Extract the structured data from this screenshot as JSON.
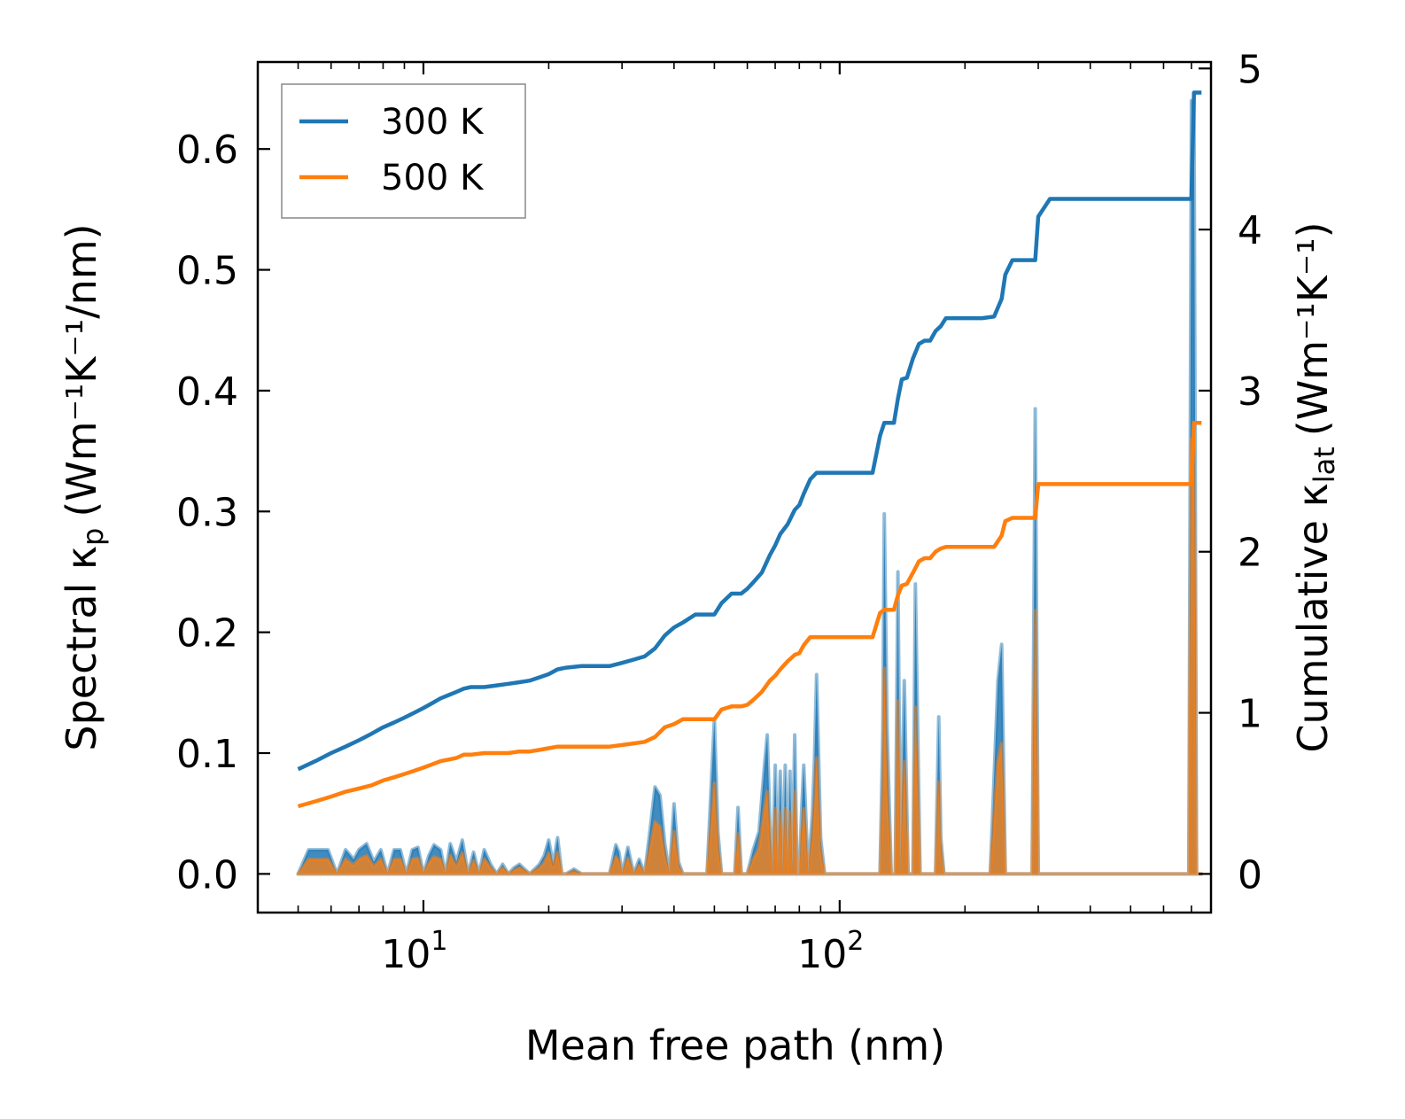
{
  "chart_data": {
    "type": "line",
    "xscale": "log",
    "xlabel": "Mean free path (nm)",
    "ylabel_left_prefix": "Spectral κ",
    "ylabel_left_sub": "p",
    "ylabel_left_unit": "(Wm⁻¹K⁻¹/nm)",
    "ylabel_right_prefix": "Cumulative κ",
    "ylabel_right_sub": "lat",
    "ylabel_right_unit": "(Wm⁻¹K⁻¹)",
    "xlim": [
      4.0,
      780
    ],
    "ylim_left": [
      -0.032,
      0.672
    ],
    "ylim_right": [
      -0.24,
      5.04
    ],
    "x_ticks": [
      {
        "value": 10,
        "base": "10",
        "exp": "1"
      },
      {
        "value": 100,
        "base": "10",
        "exp": "2"
      }
    ],
    "y_left_ticks": [
      "0.0",
      "0.1",
      "0.2",
      "0.3",
      "0.4",
      "0.5",
      "0.6"
    ],
    "y_right_ticks": [
      "0",
      "1",
      "2",
      "3",
      "4",
      "5"
    ],
    "legend": {
      "position": "top-left",
      "entries": [
        {
          "label": "300 K",
          "color": "#1f77b4"
        },
        {
          "label": "500 K",
          "color": "#ff7f0e"
        }
      ]
    },
    "series": [
      {
        "name": "300 K",
        "color": "#1f77b4",
        "axis": "right",
        "kind": "cumulative",
        "x": [
          5.0,
          5.5,
          6.0,
          6.5,
          7.0,
          7.5,
          8.0,
          8.5,
          9.0,
          9.5,
          10.0,
          10.5,
          11.0,
          11.5,
          12.0,
          12.5,
          13.0,
          14.0,
          15.0,
          16.0,
          17.0,
          18.0,
          19.0,
          20.0,
          21.0,
          22.0,
          24.0,
          26.0,
          28.0,
          30.0,
          32.0,
          34.0,
          36.0,
          38.0,
          40.0,
          42.0,
          45.0,
          48.0,
          50.0,
          52.0,
          55.0,
          58.0,
          60.0,
          62.0,
          65.0,
          68.0,
          70.0,
          72.0,
          75.0,
          78.0,
          80.0,
          82.0,
          85.0,
          88.0,
          92.0,
          100.0,
          110.0,
          120.0,
          125.0,
          128.0,
          130.0,
          135.0,
          138.0,
          141.0,
          145.0,
          150.0,
          155.0,
          160.0,
          165.0,
          170.0,
          175.0,
          180.0,
          190.0,
          200.0,
          220.0,
          235.0,
          245.0,
          250.0,
          260.0,
          280.0,
          295.0,
          300.0,
          320.0,
          400.0,
          500.0,
          600.0,
          700.0,
          710.0,
          720.0,
          740.0
        ],
        "y": [
          0.65,
          0.7,
          0.75,
          0.79,
          0.83,
          0.87,
          0.91,
          0.94,
          0.97,
          1.0,
          1.03,
          1.06,
          1.09,
          1.11,
          1.13,
          1.15,
          1.16,
          1.16,
          1.17,
          1.18,
          1.19,
          1.2,
          1.22,
          1.24,
          1.27,
          1.28,
          1.29,
          1.29,
          1.29,
          1.31,
          1.33,
          1.35,
          1.4,
          1.48,
          1.53,
          1.56,
          1.61,
          1.61,
          1.61,
          1.68,
          1.74,
          1.74,
          1.77,
          1.81,
          1.87,
          1.98,
          2.04,
          2.11,
          2.17,
          2.26,
          2.29,
          2.36,
          2.45,
          2.49,
          2.49,
          2.49,
          2.49,
          2.49,
          2.72,
          2.8,
          2.8,
          2.8,
          2.95,
          3.07,
          3.08,
          3.2,
          3.29,
          3.31,
          3.31,
          3.37,
          3.4,
          3.45,
          3.45,
          3.45,
          3.45,
          3.46,
          3.57,
          3.72,
          3.81,
          3.81,
          3.81,
          4.08,
          4.19,
          4.19,
          4.19,
          4.19,
          4.19,
          4.85,
          4.85,
          4.85
        ]
      },
      {
        "name": "500 K",
        "color": "#ff7f0e",
        "axis": "right",
        "kind": "cumulative",
        "x": [
          5.0,
          5.5,
          6.0,
          6.5,
          7.0,
          7.5,
          8.0,
          8.5,
          9.0,
          9.5,
          10.0,
          10.5,
          11.0,
          11.5,
          12.0,
          12.5,
          13.0,
          14.0,
          15.0,
          16.0,
          17.0,
          18.0,
          19.0,
          20.0,
          21.0,
          22.0,
          24.0,
          26.0,
          28.0,
          30.0,
          32.0,
          34.0,
          36.0,
          38.0,
          40.0,
          42.0,
          45.0,
          48.0,
          50.0,
          52.0,
          55.0,
          58.0,
          60.0,
          62.0,
          65.0,
          68.0,
          70.0,
          72.0,
          75.0,
          78.0,
          80.0,
          82.0,
          85.0,
          88.0,
          92.0,
          100.0,
          110.0,
          120.0,
          125.0,
          128.0,
          130.0,
          135.0,
          138.0,
          141.0,
          145.0,
          150.0,
          155.0,
          160.0,
          165.0,
          170.0,
          175.0,
          180.0,
          190.0,
          200.0,
          220.0,
          235.0,
          245.0,
          250.0,
          260.0,
          280.0,
          295.0,
          300.0,
          320.0,
          400.0,
          500.0,
          600.0,
          700.0,
          710.0,
          720.0,
          740.0
        ],
        "y": [
          0.42,
          0.45,
          0.48,
          0.51,
          0.53,
          0.55,
          0.58,
          0.6,
          0.62,
          0.64,
          0.66,
          0.68,
          0.7,
          0.71,
          0.72,
          0.74,
          0.74,
          0.75,
          0.75,
          0.75,
          0.76,
          0.76,
          0.77,
          0.78,
          0.79,
          0.79,
          0.79,
          0.79,
          0.79,
          0.8,
          0.81,
          0.82,
          0.85,
          0.91,
          0.93,
          0.96,
          0.96,
          0.96,
          0.96,
          1.02,
          1.04,
          1.04,
          1.05,
          1.08,
          1.13,
          1.2,
          1.23,
          1.27,
          1.32,
          1.36,
          1.37,
          1.42,
          1.47,
          1.47,
          1.47,
          1.47,
          1.47,
          1.47,
          1.62,
          1.64,
          1.64,
          1.64,
          1.73,
          1.79,
          1.8,
          1.87,
          1.94,
          1.96,
          1.96,
          2.0,
          2.02,
          2.03,
          2.03,
          2.03,
          2.03,
          2.03,
          2.1,
          2.19,
          2.21,
          2.21,
          2.21,
          2.42,
          2.42,
          2.42,
          2.42,
          2.42,
          2.42,
          2.8,
          2.8,
          2.8
        ]
      },
      {
        "name": "300 K spectral",
        "color": "#1f77b4",
        "axis": "left",
        "kind": "spectral",
        "x": [
          5.0,
          5.3,
          5.6,
          5.9,
          6.2,
          6.5,
          6.8,
          7.0,
          7.3,
          7.6,
          7.9,
          8.2,
          8.5,
          8.8,
          9.1,
          9.4,
          9.7,
          10.0,
          10.3,
          10.6,
          11.0,
          11.3,
          11.6,
          12.0,
          12.4,
          12.8,
          13.2,
          13.6,
          14.0,
          14.5,
          15.0,
          15.5,
          16.0,
          16.5,
          17.0,
          18.0,
          19.0,
          19.5,
          20.0,
          20.5,
          21.0,
          21.5,
          22.0,
          23.0,
          24.0,
          28.0,
          29.0,
          29.5,
          30.0,
          31.0,
          32.0,
          33.0,
          34.0,
          35.0,
          36.0,
          37.0,
          38.0,
          39.0,
          40.0,
          41.0,
          42.0,
          43.0,
          48.0,
          50.0,
          51.0,
          52.0,
          54.0,
          56.0,
          57.0,
          58.0,
          60.0,
          62.0,
          64.0,
          66.0,
          67.0,
          68.0,
          69.0,
          70.0,
          71.0,
          72.0,
          73.0,
          74.0,
          75.0,
          76.0,
          77.0,
          78.0,
          79.0,
          80.0,
          81.0,
          82.0,
          84.0,
          86.0,
          87.0,
          88.0,
          90.0,
          92.0,
          120.0,
          125.0,
          127.0,
          128.0,
          130.0,
          133.0,
          136.0,
          138.0,
          140.0,
          143.0,
          146.0,
          150.0,
          152.0,
          154.0,
          156.0,
          160.0,
          170.0,
          173.0,
          175.0,
          178.0,
          220.0,
          230.0,
          240.0,
          245.0,
          250.0,
          265.0,
          290.0,
          295.0,
          300.0,
          305.0,
          310.0,
          680.0,
          690.0,
          700.0,
          710.0,
          720.0,
          740.0
        ],
        "y": [
          0.0,
          0.02,
          0.02,
          0.02,
          0.0,
          0.02,
          0.012,
          0.02,
          0.025,
          0.01,
          0.02,
          0.0,
          0.02,
          0.02,
          0.0,
          0.02,
          0.022,
          0.0,
          0.015,
          0.024,
          0.02,
          0.0,
          0.025,
          0.01,
          0.028,
          0.0,
          0.018,
          0.0,
          0.02,
          0.008,
          0.0,
          0.008,
          0.0,
          0.005,
          0.008,
          0.0,
          0.008,
          0.015,
          0.028,
          0.008,
          0.03,
          0.0,
          0.0,
          0.004,
          0.0,
          0.0,
          0.024,
          0.018,
          0.0,
          0.022,
          0.0,
          0.012,
          0.0,
          0.035,
          0.072,
          0.065,
          0.025,
          0.0,
          0.058,
          0.01,
          0.0,
          0.0,
          0.0,
          0.128,
          0.035,
          0.0,
          0.0,
          0.0,
          0.055,
          0.0,
          0.0,
          0.02,
          0.035,
          0.09,
          0.115,
          0.04,
          0.0,
          0.09,
          0.0,
          0.085,
          0.0,
          0.09,
          0.0,
          0.085,
          0.0,
          0.115,
          0.0,
          0.0,
          0.05,
          0.09,
          0.0,
          0.05,
          0.095,
          0.165,
          0.03,
          0.0,
          0.0,
          0.0,
          0.12,
          0.298,
          0.12,
          0.0,
          0.0,
          0.25,
          0.0,
          0.16,
          0.0,
          0.0,
          0.24,
          0.12,
          0.0,
          0.0,
          0.0,
          0.13,
          0.03,
          0.0,
          0.0,
          0.0,
          0.16,
          0.19,
          0.0,
          0.0,
          0.0,
          0.385,
          0.0,
          0.0,
          0.0,
          0.0,
          0.0,
          0.64,
          0.64,
          0.0,
          0.0
        ]
      },
      {
        "name": "500 K spectral",
        "color": "#ff7f0e",
        "axis": "left",
        "kind": "spectral",
        "x": [
          5.0,
          5.3,
          5.6,
          5.9,
          6.2,
          6.5,
          6.8,
          7.0,
          7.3,
          7.6,
          7.9,
          8.2,
          8.5,
          8.8,
          9.1,
          9.4,
          9.7,
          10.0,
          10.3,
          10.6,
          11.0,
          11.3,
          11.6,
          12.0,
          12.4,
          12.8,
          13.2,
          13.6,
          14.0,
          14.5,
          15.0,
          15.5,
          16.0,
          16.5,
          17.0,
          18.0,
          19.0,
          19.5,
          20.0,
          20.5,
          21.0,
          21.5,
          22.0,
          23.0,
          24.0,
          28.0,
          29.0,
          29.5,
          30.0,
          31.0,
          32.0,
          33.0,
          34.0,
          35.0,
          36.0,
          37.0,
          38.0,
          39.0,
          40.0,
          41.0,
          42.0,
          43.0,
          48.0,
          50.0,
          51.0,
          52.0,
          54.0,
          56.0,
          57.0,
          58.0,
          60.0,
          62.0,
          64.0,
          66.0,
          67.0,
          68.0,
          69.0,
          70.0,
          71.0,
          72.0,
          73.0,
          74.0,
          75.0,
          76.0,
          77.0,
          78.0,
          79.0,
          80.0,
          81.0,
          82.0,
          84.0,
          86.0,
          87.0,
          88.0,
          90.0,
          92.0,
          120.0,
          125.0,
          127.0,
          128.0,
          130.0,
          133.0,
          136.0,
          138.0,
          140.0,
          143.0,
          146.0,
          150.0,
          152.0,
          154.0,
          156.0,
          160.0,
          170.0,
          173.0,
          175.0,
          178.0,
          220.0,
          230.0,
          240.0,
          245.0,
          250.0,
          265.0,
          290.0,
          295.0,
          300.0,
          305.0,
          310.0,
          680.0,
          690.0,
          700.0,
          710.0,
          720.0,
          740.0
        ],
        "y": [
          0.0,
          0.012,
          0.012,
          0.012,
          0.0,
          0.012,
          0.007,
          0.012,
          0.015,
          0.006,
          0.012,
          0.0,
          0.012,
          0.012,
          0.0,
          0.012,
          0.013,
          0.0,
          0.009,
          0.014,
          0.012,
          0.0,
          0.015,
          0.006,
          0.017,
          0.0,
          0.011,
          0.0,
          0.012,
          0.005,
          0.0,
          0.005,
          0.0,
          0.003,
          0.005,
          0.0,
          0.005,
          0.009,
          0.017,
          0.005,
          0.018,
          0.0,
          0.0,
          0.002,
          0.0,
          0.0,
          0.014,
          0.011,
          0.0,
          0.013,
          0.0,
          0.007,
          0.0,
          0.021,
          0.043,
          0.039,
          0.015,
          0.0,
          0.035,
          0.006,
          0.0,
          0.0,
          0.0,
          0.075,
          0.021,
          0.0,
          0.0,
          0.0,
          0.033,
          0.0,
          0.0,
          0.012,
          0.021,
          0.054,
          0.068,
          0.024,
          0.0,
          0.054,
          0.0,
          0.051,
          0.0,
          0.054,
          0.0,
          0.051,
          0.0,
          0.068,
          0.0,
          0.0,
          0.03,
          0.054,
          0.0,
          0.03,
          0.057,
          0.096,
          0.018,
          0.0,
          0.0,
          0.0,
          0.07,
          0.17,
          0.07,
          0.0,
          0.0,
          0.143,
          0.0,
          0.093,
          0.0,
          0.0,
          0.138,
          0.07,
          0.0,
          0.0,
          0.0,
          0.076,
          0.018,
          0.0,
          0.0,
          0.0,
          0.093,
          0.108,
          0.0,
          0.0,
          0.0,
          0.218,
          0.0,
          0.0,
          0.0,
          0.0,
          0.0,
          0.36,
          0.36,
          0.0,
          0.0
        ]
      }
    ]
  }
}
